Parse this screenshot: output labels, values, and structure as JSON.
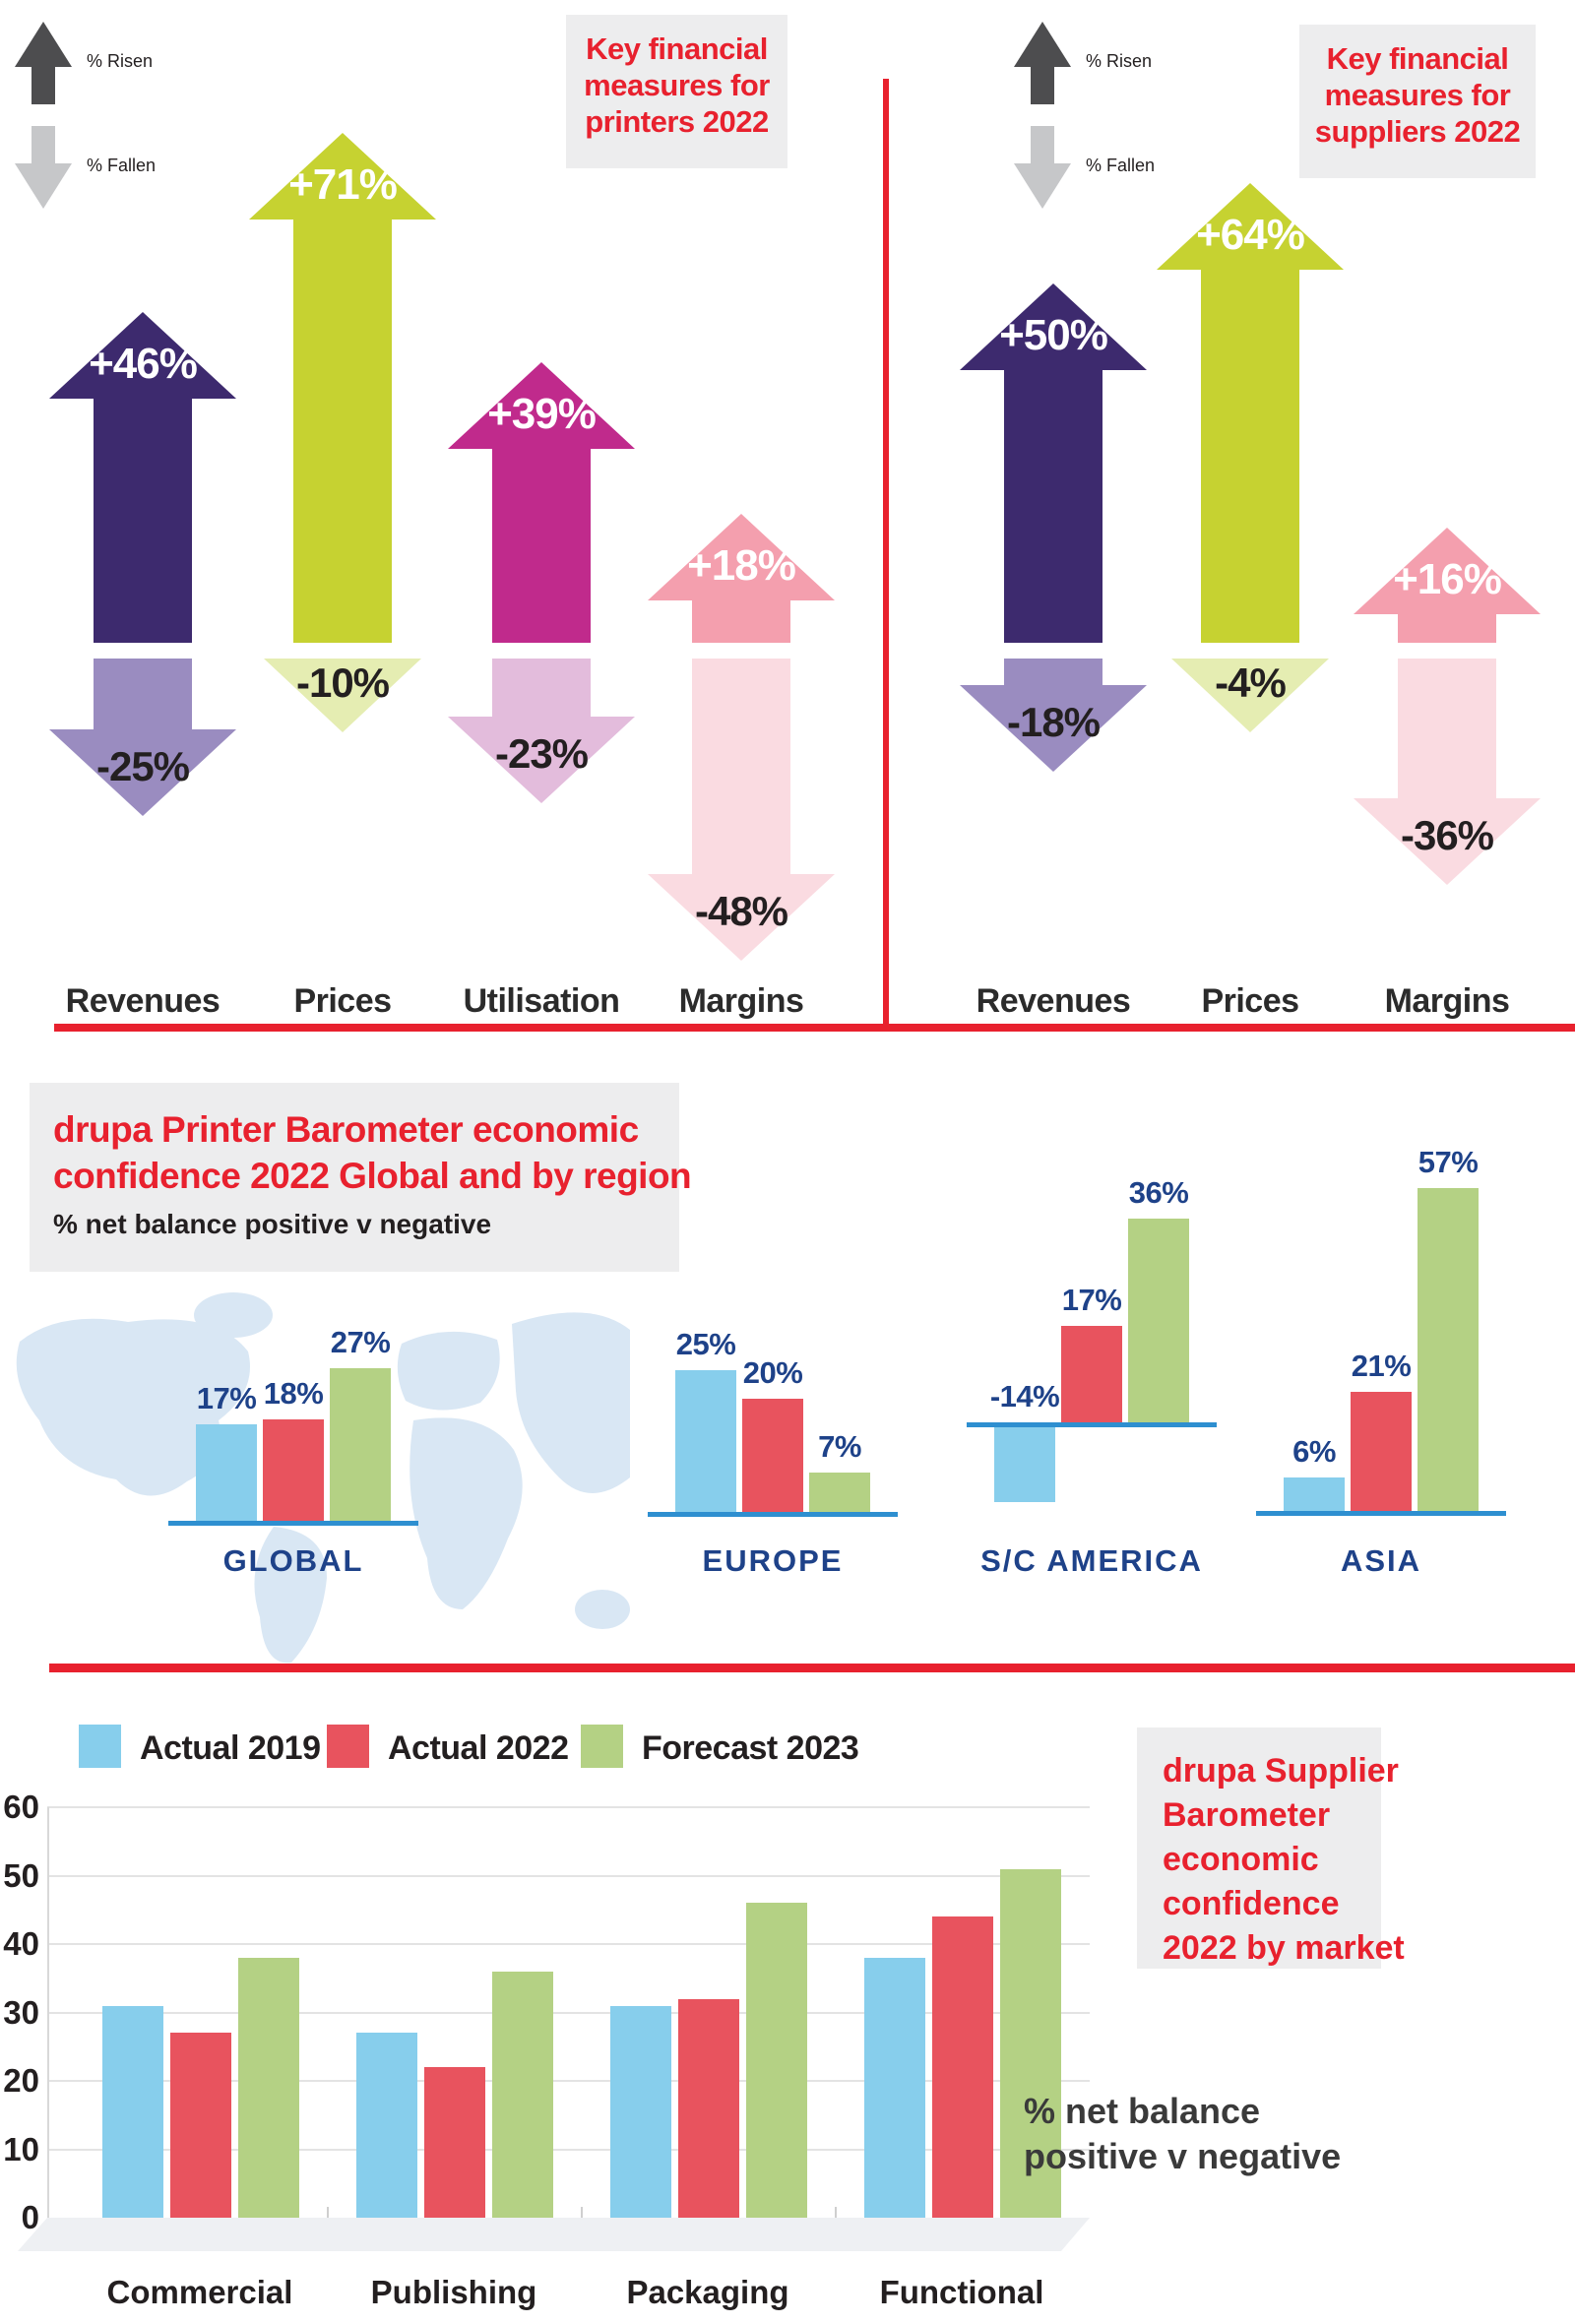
{
  "colors": {
    "accent_red": "#e8212e",
    "panel_box_bg": "#ededee",
    "risen_arrow": "#4d4d4f",
    "fallen_arrow": "#c6c7c9",
    "navy_label": "#1e4289",
    "baseline_blue": "#2e8fd0",
    "map_blue": "#d9e7f4",
    "series_blue": "#87ceec",
    "series_red": "#e8535e",
    "series_green": "#b4d184",
    "text_dark": "#231f20",
    "floor_gray": "#eef0f3"
  },
  "printers_panel": {
    "legend_risen": "% Risen",
    "legend_fallen": "% Fallen",
    "title_lines": [
      "Key financial",
      "measures for",
      "printers 2022"
    ],
    "measures": [
      {
        "label": "Revenues",
        "up_text": "+46%",
        "up_value": 46,
        "up_color": "#3d2a6e",
        "down_text": "-25%",
        "down_value": 25,
        "down_color": "#9a8cc0"
      },
      {
        "label": "Prices",
        "up_text": "+71%",
        "up_value": 71,
        "up_color": "#c6d231",
        "down_text": "-10%",
        "down_value": 10,
        "down_color": "#e5edb2"
      },
      {
        "label": "Utilisation",
        "up_text": "+39%",
        "up_value": 39,
        "up_color": "#c02a8c",
        "down_text": "-23%",
        "down_value": 23,
        "down_color": "#e3bcdc"
      },
      {
        "label": "Margins",
        "up_text": "+18%",
        "up_value": 18,
        "up_color": "#f49fae",
        "down_text": "-48%",
        "down_value": 48,
        "down_color": "#fadbe1"
      }
    ]
  },
  "suppliers_panel": {
    "legend_risen": "% Risen",
    "legend_fallen": "% Fallen",
    "title_lines": [
      "Key financial",
      "measures for",
      "suppliers 2022"
    ],
    "measures": [
      {
        "label": "Revenues",
        "up_text": "+50%",
        "up_value": 50,
        "up_color": "#3d2a6e",
        "down_text": "-18%",
        "down_value": 18,
        "down_color": "#9a8cc0"
      },
      {
        "label": "Prices",
        "up_text": "+64%",
        "up_value": 64,
        "up_color": "#c6d231",
        "down_text": "-4%",
        "down_value": 4,
        "down_color": "#e5edb2"
      },
      {
        "label": "Margins",
        "up_text": "+16%",
        "up_value": 16,
        "up_color": "#f49fae",
        "down_text": "-36%",
        "down_value": 36,
        "down_color": "#fadbe1"
      }
    ]
  },
  "regional_chart": {
    "title_line1": "drupa Printer Barometer economic",
    "title_line2": "confidence 2022 Global and by region",
    "subtitle": "% net balance positive v negative",
    "groups": [
      {
        "name": "GLOBAL",
        "labels": [
          "17%",
          "18%",
          "27%"
        ],
        "values": [
          17,
          18,
          27
        ]
      },
      {
        "name": "EUROPE",
        "labels": [
          "25%",
          "20%",
          "7%"
        ],
        "values": [
          25,
          20,
          7
        ]
      },
      {
        "name": "S/C AMERICA",
        "labels": [
          "-14%",
          "17%",
          "36%"
        ],
        "values": [
          -14,
          17,
          36
        ]
      },
      {
        "name": "ASIA",
        "labels": [
          "6%",
          "21%",
          "57%"
        ],
        "values": [
          6,
          21,
          57
        ]
      }
    ]
  },
  "market_chart": {
    "legend": [
      {
        "label": "Actual 2019",
        "color": "#87ceec"
      },
      {
        "label": "Actual 2022",
        "color": "#e8535e"
      },
      {
        "label": "Forecast 2023",
        "color": "#b4d184"
      }
    ],
    "title_lines": [
      "drupa Supplier",
      "Barometer",
      "economic",
      "confidence",
      "2022 by market"
    ],
    "note_lines": [
      "% net balance",
      "positive v negative"
    ],
    "y_ticks": [
      60,
      50,
      40,
      30,
      20,
      10,
      0
    ],
    "categories": [
      "Commercial",
      "Publishing",
      "Packaging",
      "Functional"
    ],
    "series": [
      {
        "name": "Actual 2019",
        "values": [
          31,
          27,
          31,
          38
        ]
      },
      {
        "name": "Actual 2022",
        "values": [
          27,
          22,
          32,
          44
        ]
      },
      {
        "name": "Forecast 2023",
        "values": [
          38,
          36,
          46,
          51
        ]
      }
    ]
  },
  "chart_data": [
    {
      "type": "bar",
      "title": "Key financial measures for printers 2022",
      "categories": [
        "Revenues",
        "Prices",
        "Utilisation",
        "Margins"
      ],
      "series": [
        {
          "name": "% Risen",
          "values": [
            46,
            71,
            39,
            18
          ]
        },
        {
          "name": "% Fallen",
          "values": [
            -25,
            -10,
            -23,
            -48
          ]
        }
      ],
      "unit": "%"
    },
    {
      "type": "bar",
      "title": "Key financial measures for suppliers 2022",
      "categories": [
        "Revenues",
        "Prices",
        "Margins"
      ],
      "series": [
        {
          "name": "% Risen",
          "values": [
            50,
            64,
            16
          ]
        },
        {
          "name": "% Fallen",
          "values": [
            -18,
            -4,
            -36
          ]
        }
      ],
      "unit": "%"
    },
    {
      "type": "bar",
      "title": "drupa Printer Barometer economic confidence 2022 Global and by region",
      "ylabel": "% net balance positive v negative",
      "categories": [
        "GLOBAL",
        "EUROPE",
        "S/C AMERICA",
        "ASIA"
      ],
      "series": [
        {
          "name": "blue",
          "values": [
            17,
            25,
            -14,
            6
          ]
        },
        {
          "name": "red",
          "values": [
            18,
            20,
            17,
            21
          ]
        },
        {
          "name": "green",
          "values": [
            27,
            7,
            36,
            57
          ]
        }
      ],
      "unit": "%"
    },
    {
      "type": "bar",
      "title": "drupa Supplier Barometer economic confidence 2022 by market",
      "ylabel": "% net balance positive v negative",
      "categories": [
        "Commercial",
        "Publishing",
        "Packaging",
        "Functional"
      ],
      "series": [
        {
          "name": "Actual 2019",
          "values": [
            31,
            27,
            31,
            38
          ]
        },
        {
          "name": "Actual 2022",
          "values": [
            27,
            22,
            32,
            44
          ]
        },
        {
          "name": "Forecast 2023",
          "values": [
            38,
            36,
            46,
            51
          ]
        }
      ],
      "ylim": [
        0,
        60
      ],
      "grid": true,
      "legend_position": "top"
    }
  ]
}
